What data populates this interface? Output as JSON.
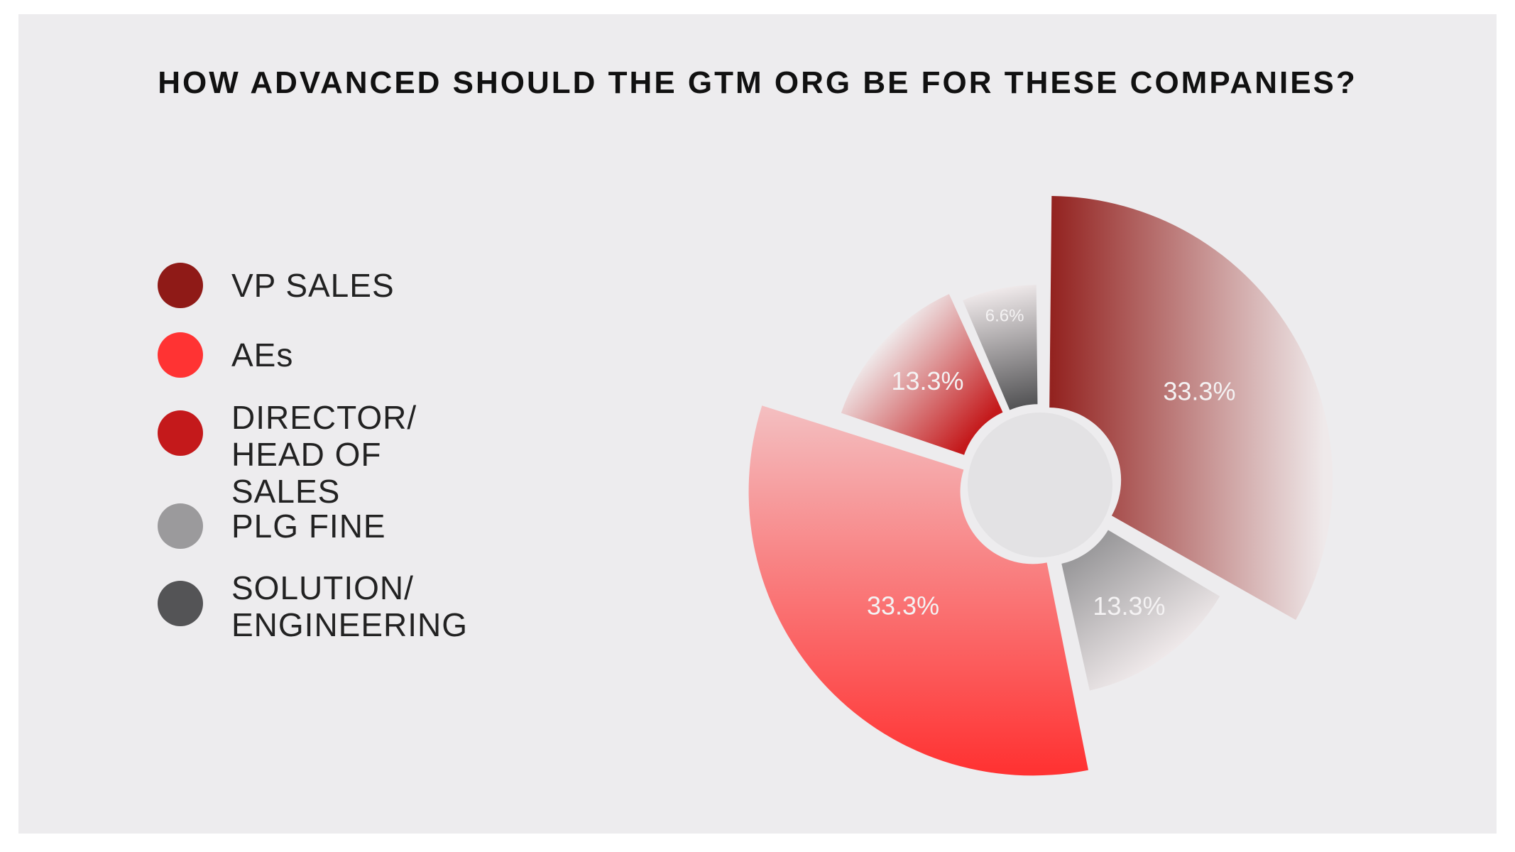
{
  "chart_data": {
    "type": "pie",
    "title": "HOW ADVANCED SHOULD THE GTM ORG BE FOR THESE COMPANIES?",
    "legend_position": "left",
    "series": [
      {
        "name": "VP SALES",
        "label": "33.3%",
        "value": 33.3,
        "color": "#8f1a17"
      },
      {
        "name": "AEs",
        "label": "33.3%",
        "value": 33.3,
        "color": "#ff3333"
      },
      {
        "name": "DIRECTOR/\nHEAD OF SALES",
        "label": "13.3%",
        "value": 13.3,
        "color": "#c4191b"
      },
      {
        "name": "PLG FINE",
        "label": "13.3%",
        "value": 13.3,
        "color": "#9b9a9c"
      },
      {
        "name": "SOLUTION/\nENGINEERING",
        "label": "6.6%",
        "value": 6.6,
        "color": "#545456"
      }
    ],
    "slice_order": [
      "VP SALES",
      "PLG FINE",
      "AEs",
      "DIRECTOR/\nHEAD OF SALES",
      "SOLUTION/\nENGINEERING"
    ]
  }
}
